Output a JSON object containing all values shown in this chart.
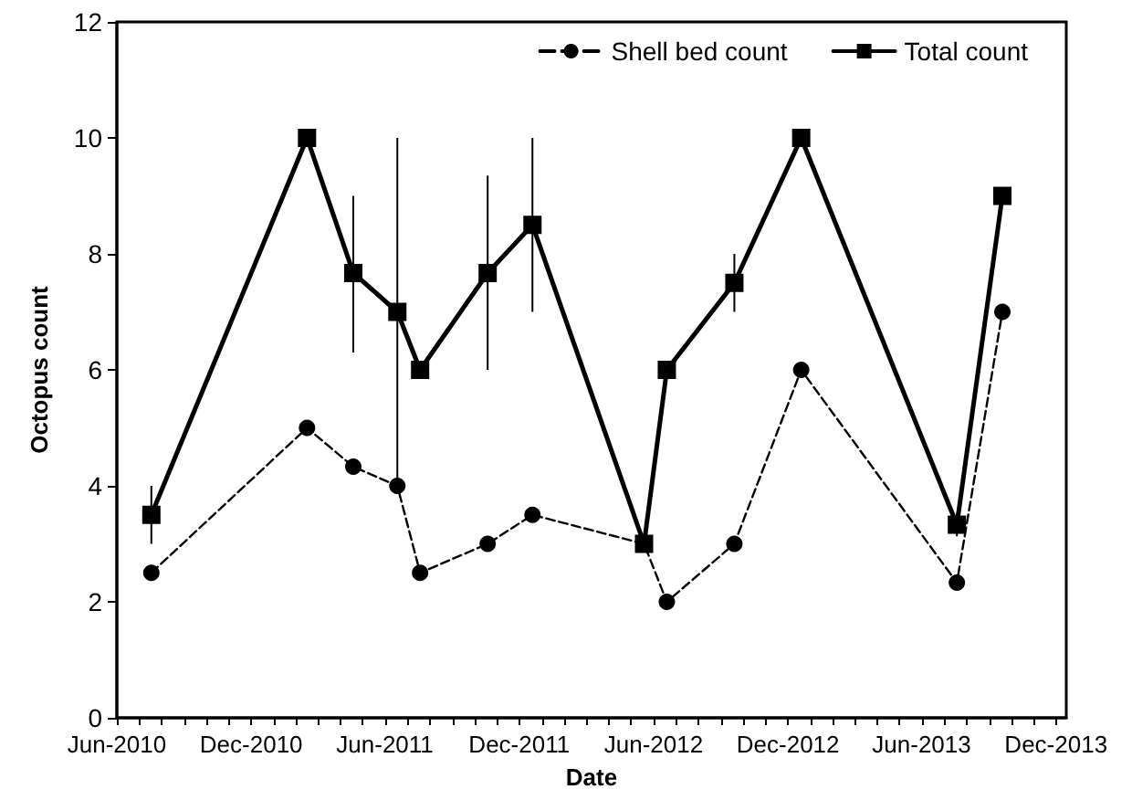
{
  "chart_data": {
    "type": "line",
    "xlabel": "Date",
    "ylabel": "Octopus count",
    "x": [
      "2010-07-18",
      "2011-02-15",
      "2011-04-19",
      "2011-06-18",
      "2011-07-19",
      "2011-10-19",
      "2011-12-19",
      "2012-05-19",
      "2012-06-19",
      "2012-09-19",
      "2012-12-19",
      "2013-07-19",
      "2013-09-19"
    ],
    "series": [
      {
        "name": "Shell bed count",
        "color": "#000000",
        "marker": "circle",
        "line_style": "dashed",
        "values": [
          2.5,
          5,
          4.33,
          4,
          2.5,
          3,
          3.5,
          3,
          2,
          3,
          6,
          2.33,
          7
        ]
      },
      {
        "name": "Total count",
        "color": "#000000",
        "marker": "square",
        "line_style": "solid",
        "values": [
          3.5,
          10,
          7.67,
          7,
          6,
          7.67,
          8.5,
          3,
          6,
          7.5,
          10,
          3.33,
          9
        ],
        "errors": [
          0.5,
          null,
          [
            6.3,
            9
          ],
          [
            4.1,
            10
          ],
          null,
          [
            6,
            9.35
          ],
          [
            7,
            10
          ],
          null,
          null,
          0.5,
          null,
          0.2,
          null
        ]
      }
    ],
    "xlim": [
      "2010-06-01",
      "2013-12-15"
    ],
    "xticks": [
      {
        "value": "2010-06-01",
        "label": "Jun-2010"
      },
      {
        "value": "2010-07-01",
        "label": null
      },
      {
        "value": "2010-08-01",
        "label": null
      },
      {
        "value": "2010-09-01",
        "label": null
      },
      {
        "value": "2010-10-01",
        "label": null
      },
      {
        "value": "2010-11-01",
        "label": null
      },
      {
        "value": "2010-12-01",
        "label": "Dec-2010"
      },
      {
        "value": "2011-01-01",
        "label": null
      },
      {
        "value": "2011-02-01",
        "label": null
      },
      {
        "value": "2011-03-01",
        "label": null
      },
      {
        "value": "2011-04-01",
        "label": null
      },
      {
        "value": "2011-05-01",
        "label": null
      },
      {
        "value": "2011-06-01",
        "label": "Jun-2011"
      },
      {
        "value": "2011-07-01",
        "label": null
      },
      {
        "value": "2011-08-01",
        "label": null
      },
      {
        "value": "2011-09-01",
        "label": null
      },
      {
        "value": "2011-10-01",
        "label": null
      },
      {
        "value": "2011-11-01",
        "label": null
      },
      {
        "value": "2011-12-01",
        "label": "Dec-2011"
      },
      {
        "value": "2012-01-01",
        "label": null
      },
      {
        "value": "2012-02-01",
        "label": null
      },
      {
        "value": "2012-03-01",
        "label": null
      },
      {
        "value": "2012-04-01",
        "label": null
      },
      {
        "value": "2012-05-01",
        "label": null
      },
      {
        "value": "2012-06-01",
        "label": "Jun-2012"
      },
      {
        "value": "2012-07-01",
        "label": null
      },
      {
        "value": "2012-08-01",
        "label": null
      },
      {
        "value": "2012-09-01",
        "label": null
      },
      {
        "value": "2012-10-01",
        "label": null
      },
      {
        "value": "2012-11-01",
        "label": null
      },
      {
        "value": "2012-12-01",
        "label": "Dec-2012"
      },
      {
        "value": "2013-01-01",
        "label": null
      },
      {
        "value": "2013-02-01",
        "label": null
      },
      {
        "value": "2013-03-01",
        "label": null
      },
      {
        "value": "2013-04-01",
        "label": null
      },
      {
        "value": "2013-05-01",
        "label": null
      },
      {
        "value": "2013-06-01",
        "label": "Jun-2013"
      },
      {
        "value": "2013-07-01",
        "label": null
      },
      {
        "value": "2013-08-01",
        "label": null
      },
      {
        "value": "2013-09-01",
        "label": null
      },
      {
        "value": "2013-10-01",
        "label": null
      },
      {
        "value": "2013-11-01",
        "label": null
      },
      {
        "value": "2013-12-01",
        "label": "Dec-2013"
      }
    ],
    "ylim": [
      0,
      12
    ],
    "yticks": [
      0,
      2,
      4,
      6,
      8,
      10,
      12
    ],
    "grid": false,
    "legend": "top right"
  }
}
